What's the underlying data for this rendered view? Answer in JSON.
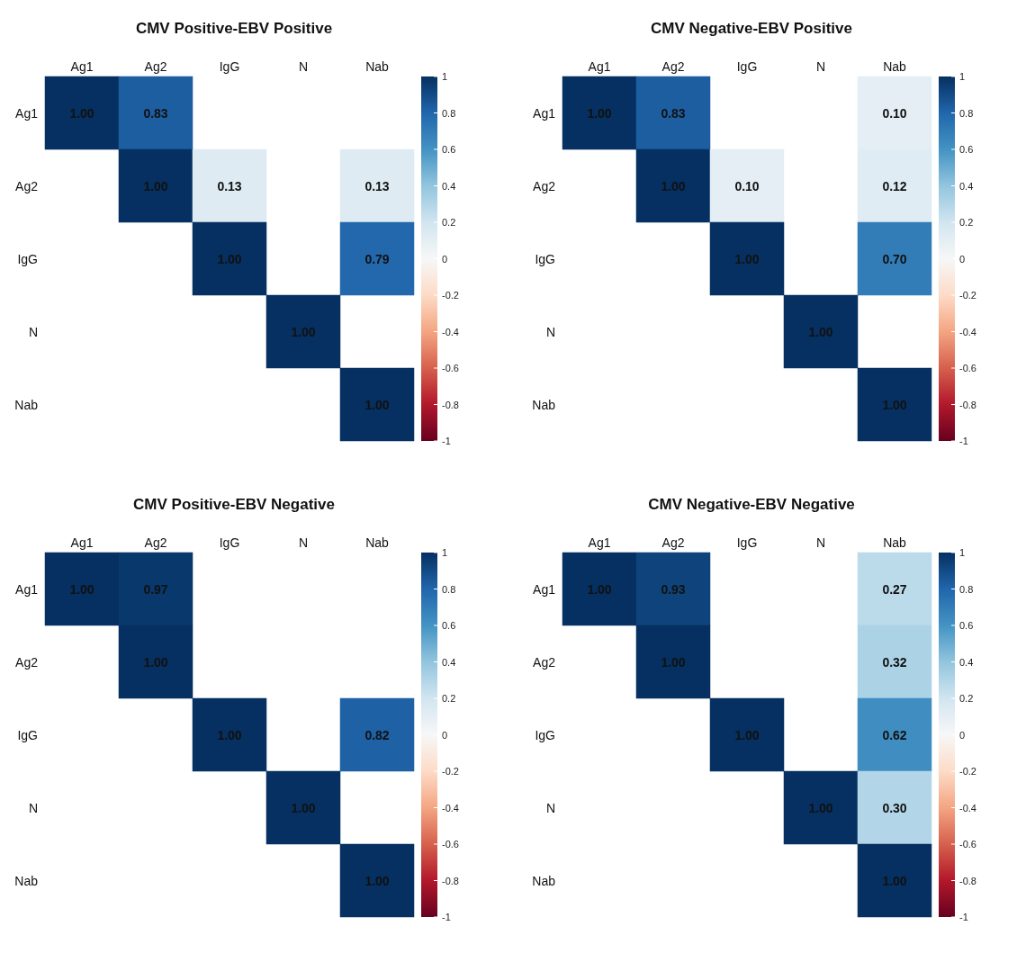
{
  "chart_data": [
    {
      "type": "heatmap",
      "title": "CMV Positive-EBV Positive",
      "categories": [
        "Ag1",
        "Ag2",
        "IgG",
        "N",
        "Nab"
      ],
      "y_categories": [
        "Ag1",
        "Ag2",
        "IgG",
        "N",
        "Nab"
      ],
      "cells": [
        [
          1,
          0.83,
          null,
          null,
          null
        ],
        [
          null,
          1,
          0.13,
          null,
          0.13
        ],
        [
          null,
          null,
          1,
          null,
          0.79
        ],
        [
          null,
          null,
          null,
          1,
          null
        ],
        [
          null,
          null,
          null,
          null,
          1
        ]
      ],
      "cell_labels": [
        [
          "1.00",
          "0.83",
          null,
          null,
          null
        ],
        [
          null,
          "1.00",
          "0.13",
          null,
          "0.13"
        ],
        [
          null,
          null,
          "1.00",
          null,
          "0.79"
        ],
        [
          null,
          null,
          null,
          "1.00",
          null
        ],
        [
          null,
          null,
          null,
          null,
          "1.00"
        ]
      ],
      "clim": [
        -1,
        1
      ],
      "cticks": [
        -1,
        -0.8,
        -0.6,
        -0.4,
        -0.2,
        0,
        0.2,
        0.4,
        0.6,
        0.8,
        1
      ]
    },
    {
      "type": "heatmap",
      "title": "CMV Negative-EBV Positive",
      "categories": [
        "Ag1",
        "Ag2",
        "IgG",
        "N",
        "Nab"
      ],
      "y_categories": [
        "Ag1",
        "Ag2",
        "IgG",
        "N",
        "Nab"
      ],
      "cells": [
        [
          1,
          0.83,
          null,
          null,
          0.1
        ],
        [
          null,
          1,
          0.1,
          null,
          0.12
        ],
        [
          null,
          null,
          1,
          null,
          0.7
        ],
        [
          null,
          null,
          null,
          1,
          null
        ],
        [
          null,
          null,
          null,
          null,
          1
        ]
      ],
      "cell_labels": [
        [
          "1.00",
          "0.83",
          null,
          null,
          "0.10"
        ],
        [
          null,
          "1.00",
          "0.10",
          null,
          "0.12"
        ],
        [
          null,
          null,
          "1.00",
          null,
          "0.70"
        ],
        [
          null,
          null,
          null,
          "1.00",
          null
        ],
        [
          null,
          null,
          null,
          null,
          "1.00"
        ]
      ],
      "clim": [
        -1,
        1
      ],
      "cticks": [
        -1,
        -0.8,
        -0.6,
        -0.4,
        -0.2,
        0,
        0.2,
        0.4,
        0.6,
        0.8,
        1
      ]
    },
    {
      "type": "heatmap",
      "title": "CMV Positive-EBV Negative",
      "categories": [
        "Ag1",
        "Ag2",
        "IgG",
        "N",
        "Nab"
      ],
      "y_categories": [
        "Ag1",
        "Ag2",
        "IgG",
        "N",
        "Nab"
      ],
      "cells": [
        [
          1,
          0.97,
          null,
          null,
          null
        ],
        [
          null,
          1,
          null,
          null,
          null
        ],
        [
          null,
          null,
          1,
          null,
          0.82
        ],
        [
          null,
          null,
          null,
          1,
          null
        ],
        [
          null,
          null,
          null,
          null,
          1
        ]
      ],
      "cell_labels": [
        [
          "1.00",
          "0.97",
          null,
          null,
          null
        ],
        [
          null,
          "1.00",
          null,
          null,
          null
        ],
        [
          null,
          null,
          "1.00",
          null,
          "0.82"
        ],
        [
          null,
          null,
          null,
          "1.00",
          null
        ],
        [
          null,
          null,
          null,
          null,
          "1.00"
        ]
      ],
      "clim": [
        -1,
        1
      ],
      "cticks": [
        -1,
        -0.8,
        -0.6,
        -0.4,
        -0.2,
        0,
        0.2,
        0.4,
        0.6,
        0.8,
        1
      ]
    },
    {
      "type": "heatmap",
      "title": "CMV Negative-EBV Negative",
      "categories": [
        "Ag1",
        "Ag2",
        "IgG",
        "N",
        "Nab"
      ],
      "y_categories": [
        "Ag1",
        "Ag2",
        "IgG",
        "N",
        "Nab"
      ],
      "cells": [
        [
          1,
          0.93,
          null,
          null,
          0.27
        ],
        [
          null,
          1,
          null,
          null,
          0.32
        ],
        [
          null,
          null,
          1,
          null,
          0.62
        ],
        [
          null,
          null,
          null,
          1,
          0.3
        ],
        [
          null,
          null,
          null,
          null,
          1
        ]
      ],
      "cell_labels": [
        [
          "1.00",
          "0.93",
          null,
          null,
          "0.27"
        ],
        [
          null,
          "1.00",
          null,
          null,
          "0.32"
        ],
        [
          null,
          null,
          "1.00",
          null,
          "0.62"
        ],
        [
          null,
          null,
          null,
          "1.00",
          "0.30"
        ],
        [
          null,
          null,
          null,
          null,
          "1.00"
        ]
      ],
      "clim": [
        -1,
        1
      ],
      "cticks": [
        -1,
        -0.8,
        -0.6,
        -0.4,
        -0.2,
        0,
        0.2,
        0.4,
        0.6,
        0.8,
        1
      ]
    }
  ]
}
